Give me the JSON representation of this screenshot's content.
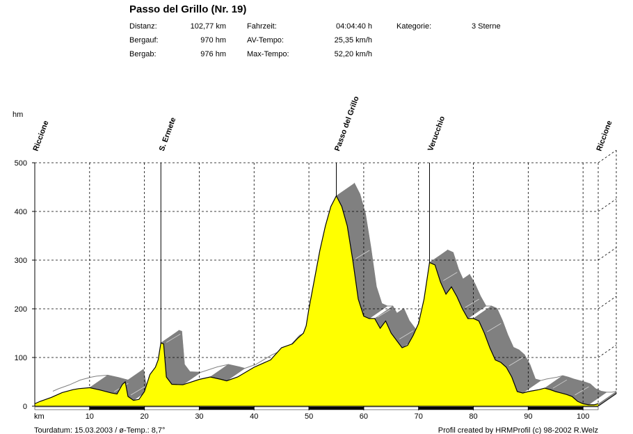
{
  "header": {
    "title": "Passo del Grillo (Nr. 19)",
    "distance_label": "Distanz:",
    "distance_value": "102,77 km",
    "climb_label": "Bergauf:",
    "climb_value": "970 hm",
    "descent_label": "Bergab:",
    "descent_value": "976 hm",
    "time_label": "Fahrzeit:",
    "time_value": "04:04:40 h",
    "avg_label": "AV-Tempo:",
    "avg_value": "25,35 km/h",
    "max_label": "Max-Tempo:",
    "max_value": "52,20 km/h",
    "category_label": "Kategorie:",
    "category_value": "3 Sterne"
  },
  "footer": {
    "tour_info": "Tourdatum: 15.03.2003  /  ø-Temp.: 8,7°",
    "credit": "Profil created by HRMProfil (c) 98-2002 R.Welz"
  },
  "colors": {
    "profile_fill": "#ffff00",
    "shadow_fill": "#808080",
    "grid": "#000000",
    "highlight": "#d4d4d4"
  },
  "chart_data": {
    "type": "area",
    "xlabel": "km",
    "ylabel": "hm",
    "xlim": [
      0,
      102.77
    ],
    "ylim": [
      0,
      500
    ],
    "x_ticks": [
      10,
      20,
      30,
      40,
      50,
      60,
      70,
      80,
      90,
      100
    ],
    "y_ticks": [
      0,
      100,
      200,
      300,
      400,
      500
    ],
    "grid": true,
    "waypoints": [
      {
        "name": "Riccione",
        "km": 0
      },
      {
        "name": "S. Ermete",
        "km": 23
      },
      {
        "name": "Passo del Grillo",
        "km": 55
      },
      {
        "name": "Verucchio",
        "km": 72
      },
      {
        "name": "Riccione",
        "km": 102.77
      }
    ],
    "profile": {
      "x": [
        0,
        1,
        3,
        5,
        7,
        8,
        10,
        12,
        14,
        15,
        16,
        16.5,
        17,
        18,
        19,
        20,
        21,
        22,
        22.5,
        23,
        23.5,
        24,
        25,
        27,
        30,
        32,
        34,
        35,
        37,
        40,
        43,
        45,
        47,
        48,
        49,
        49.5,
        50,
        51,
        52,
        53,
        54,
        55,
        56,
        57,
        58,
        59,
        60,
        61,
        62,
        63,
        64,
        65,
        66,
        67,
        68,
        69,
        70,
        71,
        72,
        73,
        74,
        75,
        76,
        77,
        78,
        79,
        80,
        81,
        82,
        83,
        84,
        85,
        86,
        87,
        88,
        89,
        90,
        91,
        92,
        93,
        94,
        95,
        96,
        97,
        98,
        99,
        100,
        101,
        102,
        102.77
      ],
      "y": [
        5,
        10,
        18,
        28,
        34,
        36,
        38,
        33,
        27,
        25,
        45,
        50,
        20,
        12,
        14,
        30,
        65,
        80,
        95,
        130,
        128,
        60,
        45,
        44,
        55,
        60,
        55,
        52,
        60,
        80,
        95,
        120,
        128,
        140,
        150,
        165,
        200,
        260,
        320,
        370,
        410,
        432,
        410,
        370,
        300,
        220,
        185,
        180,
        180,
        160,
        175,
        150,
        135,
        120,
        125,
        145,
        170,
        220,
        295,
        290,
        255,
        230,
        245,
        225,
        200,
        180,
        180,
        175,
        150,
        120,
        95,
        90,
        80,
        60,
        30,
        27,
        30,
        32,
        34,
        37,
        34,
        30,
        27,
        24,
        20,
        10,
        5,
        3,
        3,
        5
      ]
    }
  }
}
